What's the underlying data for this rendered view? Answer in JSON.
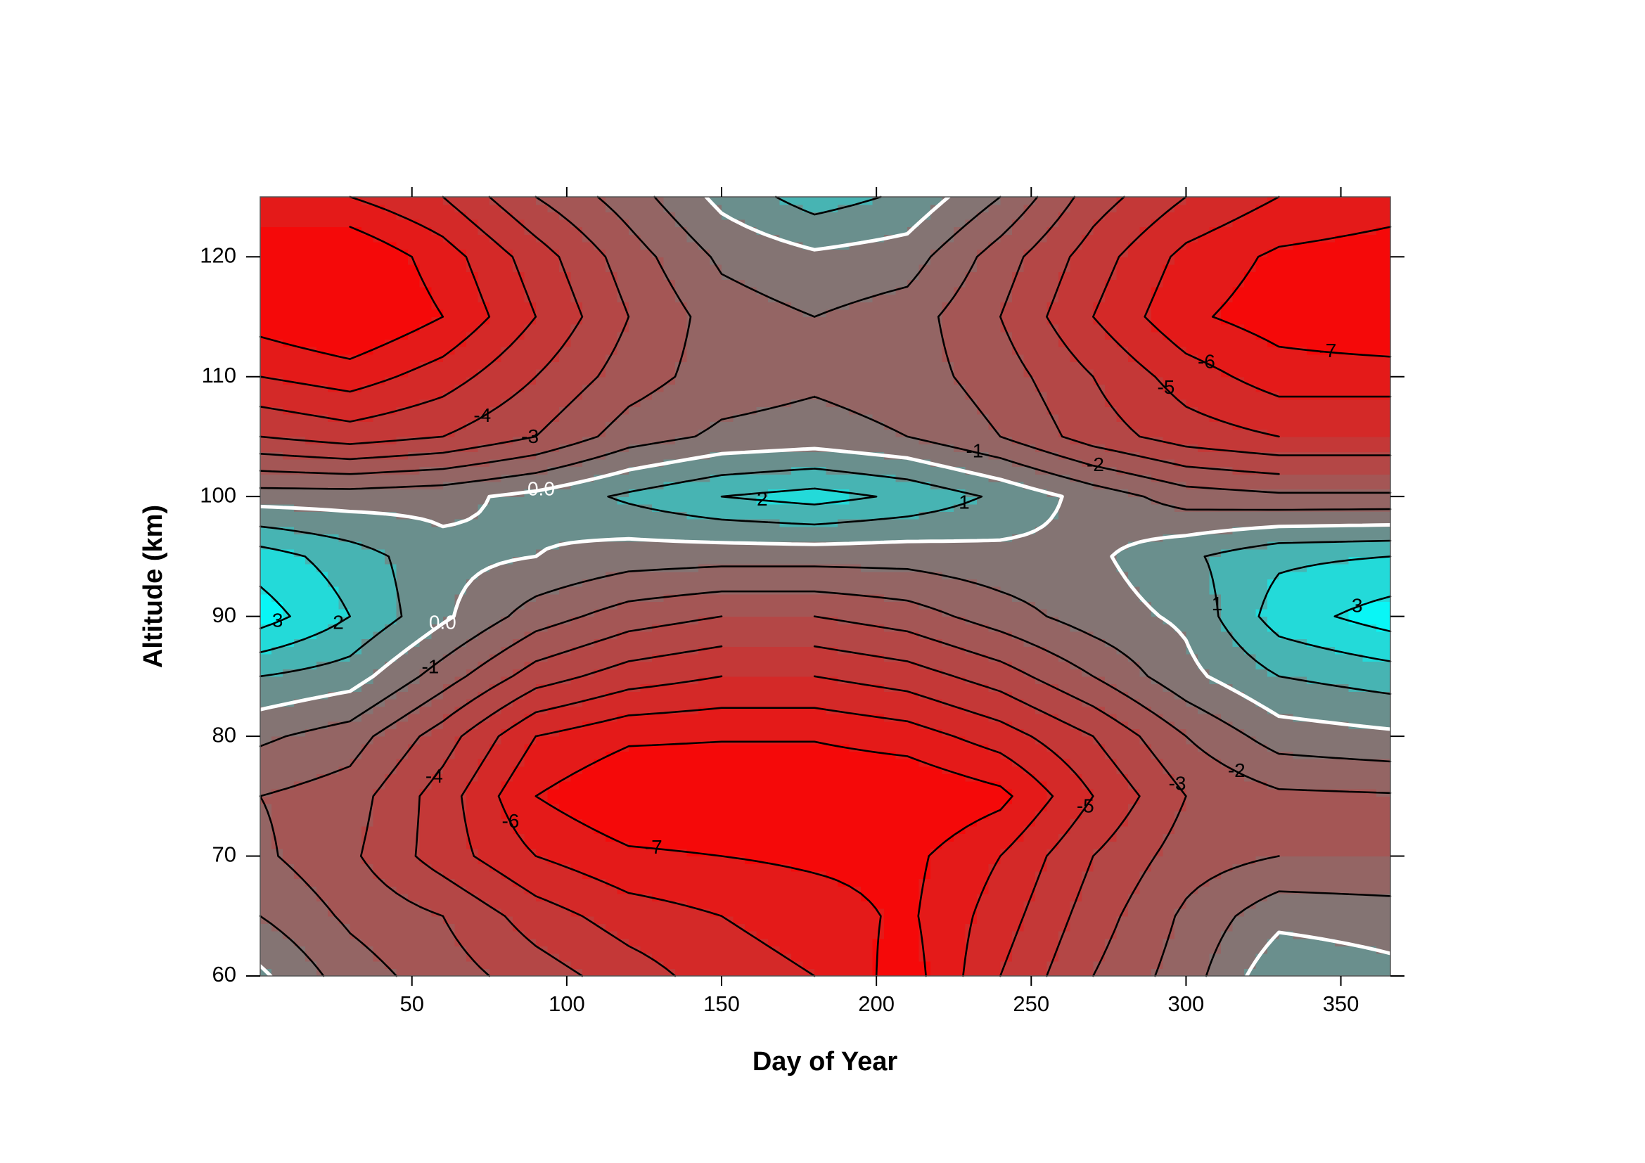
{
  "chart_data": {
    "type": "contour",
    "x_label": "Day of Year",
    "y_label": "Altitude (km)",
    "xlim": [
      1,
      366
    ],
    "ylim": [
      60,
      125
    ],
    "xticks": [
      50,
      100,
      150,
      200,
      250,
      300,
      350
    ],
    "yticks": [
      60,
      70,
      80,
      90,
      100,
      110,
      120
    ],
    "x": [
      1,
      30,
      60,
      90,
      120,
      150,
      180,
      210,
      240,
      270,
      300,
      330,
      366
    ],
    "y": [
      60,
      65,
      70,
      75,
      80,
      85,
      90,
      95,
      100,
      105,
      110,
      115,
      120,
      125
    ],
    "z": [
      [
        0.2,
        -1.5,
        -2.5,
        -3.5,
        -4.5,
        -5.5,
        -6,
        -7.5,
        -5,
        -3,
        -1.5,
        0.8,
        0.3
      ],
      [
        -1,
        -2.2,
        -3,
        -4.5,
        -5.5,
        -6,
        -6.5,
        -7.2,
        -5.5,
        -3.5,
        -1.8,
        -0.3,
        -0.5
      ],
      [
        -1.8,
        -2.8,
        -4.5,
        -6,
        -6.8,
        -7,
        -7.2,
        -7.3,
        -6,
        -4,
        -2.5,
        -2,
        -2
      ],
      [
        -2,
        -2.5,
        -4.5,
        -7,
        -8,
        -8,
        -8,
        -8,
        -7.3,
        -5,
        -3,
        -2.2,
        -2.1
      ],
      [
        -0.8,
        -1.5,
        -3.5,
        -6,
        -6.8,
        -6.9,
        -6.9,
        -6.5,
        -5.5,
        -4,
        -2,
        -0.5,
        -0.2
      ],
      [
        1,
        0.5,
        -1.5,
        -3.5,
        -4.5,
        -5,
        -5,
        -4.5,
        -3.5,
        -2,
        -0.3,
        1,
        1.5
      ],
      [
        3.5,
        2,
        0.2,
        -1.5,
        -2.5,
        -3,
        -3,
        -2.5,
        -1.5,
        -0.5,
        0.2,
        2.5,
        3.5
      ],
      [
        2.5,
        1.5,
        0.3,
        0,
        -0.5,
        -0.6,
        -0.6,
        -0.6,
        -0.3,
        -0.2,
        0.8,
        1.8,
        2
      ],
      [
        -0.5,
        -0.5,
        -0.3,
        0.3,
        1.2,
        2,
        2.4,
        1.8,
        0.8,
        -0.4,
        -1.5,
        -1.8,
        -1.8
      ],
      [
        -4,
        -4.5,
        -4,
        -3,
        -1.5,
        -0.8,
        -0.6,
        -1,
        -2,
        -3.5,
        -4.5,
        -5,
        -5
      ],
      [
        -6,
        -6.5,
        -5.5,
        -4,
        -2.5,
        -1.5,
        -1.2,
        -1.5,
        -2.5,
        -4,
        -5.5,
        -6.5,
        -6.5
      ],
      [
        -7.5,
        -8.2,
        -7,
        -5,
        -3,
        -1.5,
        -1,
        -1.5,
        -3,
        -5,
        -6.8,
        -7.5,
        -8
      ],
      [
        -7.5,
        -8,
        -6.5,
        -4.5,
        -2.5,
        -0.8,
        -0.2,
        -0.5,
        -2.5,
        -4.5,
        -6.3,
        -7.2,
        -7.5
      ],
      [
        -6.5,
        -6,
        -5,
        -3,
        -1.5,
        0.3,
        1.5,
        0.8,
        -1,
        -3.5,
        -5,
        -6,
        -6.5
      ]
    ],
    "levels": [
      -7,
      -6,
      -5,
      -4,
      -3,
      -2,
      -1,
      {
        "value": 0,
        "label": "0.0"
      },
      1,
      2,
      3
    ],
    "colors": {
      "low": "#ff0000",
      "mid": "#7c7c7a",
      "high": "#00ffff"
    },
    "line_color": "#000000",
    "zero_line_color": "#ffffff"
  }
}
